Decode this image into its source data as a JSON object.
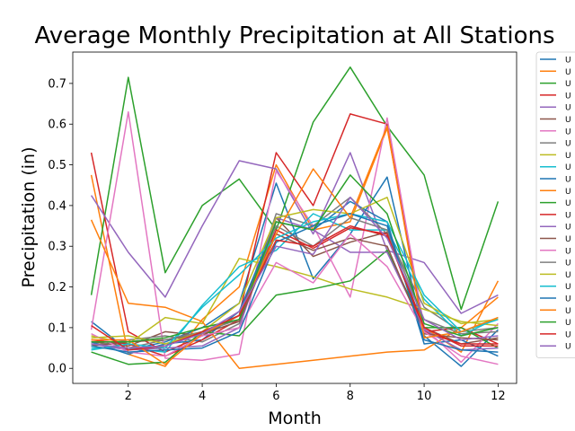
{
  "chart_data": {
    "type": "line",
    "title": "Average Monthly Precipitation at All Stations",
    "xlabel": "Month",
    "ylabel": "Precipitation (in)",
    "xlim": [
      0.5,
      12.5
    ],
    "ylim": [
      -0.037,
      0.777
    ],
    "xticks": [
      2,
      4,
      6,
      8,
      10,
      12
    ],
    "yticks": [
      0.0,
      0.1,
      0.2,
      0.3,
      0.4,
      0.5,
      0.6,
      0.7
    ],
    "grid": false,
    "legend_position": "outside-right",
    "x": [
      1,
      2,
      3,
      4,
      5,
      6,
      7,
      8,
      9,
      10,
      11,
      12
    ],
    "series": [
      {
        "name": "U",
        "color": "#1f77b4",
        "values": [
          0.115,
          0.045,
          0.065,
          0.1,
          0.16,
          0.455,
          0.22,
          0.33,
          0.47,
          0.08,
          0.005,
          0.095
        ]
      },
      {
        "name": "U",
        "color": "#ff7f0e",
        "values": [
          0.475,
          0.035,
          0.005,
          0.12,
          0.2,
          0.5,
          0.34,
          0.36,
          0.59,
          0.1,
          0.04,
          0.215
        ]
      },
      {
        "name": "U",
        "color": "#2ca02c",
        "values": [
          0.18,
          0.715,
          0.235,
          0.4,
          0.465,
          0.34,
          0.605,
          0.74,
          0.595,
          0.475,
          0.145,
          0.41
        ]
      },
      {
        "name": "U",
        "color": "#d62728",
        "values": [
          0.53,
          0.09,
          0.04,
          0.08,
          0.13,
          0.53,
          0.4,
          0.625,
          0.6,
          0.09,
          0.1,
          0.06
        ]
      },
      {
        "name": "U",
        "color": "#9467bd",
        "values": [
          0.425,
          0.285,
          0.175,
          0.35,
          0.51,
          0.49,
          0.33,
          0.53,
          0.29,
          0.26,
          0.135,
          0.18
        ]
      },
      {
        "name": "U",
        "color": "#8c564b",
        "values": [
          0.065,
          0.055,
          0.09,
          0.08,
          0.13,
          0.37,
          0.275,
          0.31,
          0.335,
          0.1,
          0.06,
          0.075
        ]
      },
      {
        "name": "U",
        "color": "#e377c2",
        "values": [
          0.095,
          0.63,
          0.025,
          0.02,
          0.035,
          0.485,
          0.35,
          0.175,
          0.615,
          0.1,
          0.015,
          0.11
        ]
      },
      {
        "name": "U",
        "color": "#7f7f7f",
        "values": [
          0.055,
          0.07,
          0.08,
          0.065,
          0.11,
          0.38,
          0.35,
          0.42,
          0.33,
          0.15,
          0.09,
          0.1
        ]
      },
      {
        "name": "U",
        "color": "#bcbd22",
        "values": [
          0.08,
          0.06,
          0.125,
          0.11,
          0.27,
          0.25,
          0.225,
          0.195,
          0.175,
          0.145,
          0.115,
          0.105
        ]
      },
      {
        "name": "U",
        "color": "#17becf",
        "values": [
          0.05,
          0.05,
          0.04,
          0.155,
          0.25,
          0.29,
          0.38,
          0.34,
          0.34,
          0.17,
          0.08,
          0.125
        ]
      },
      {
        "name": "U",
        "color": "#1f77b4",
        "values": [
          0.065,
          0.035,
          0.06,
          0.07,
          0.14,
          0.36,
          0.34,
          0.41,
          0.36,
          0.06,
          0.07,
          0.03
        ]
      },
      {
        "name": "U",
        "color": "#ff7f0e",
        "values": [
          0.365,
          0.16,
          0.15,
          0.115,
          0.0,
          0.01,
          0.02,
          0.03,
          0.04,
          0.045,
          0.1,
          0.175
        ]
      },
      {
        "name": "U",
        "color": "#2ca02c",
        "values": [
          0.04,
          0.01,
          0.015,
          0.09,
          0.08,
          0.18,
          0.195,
          0.215,
          0.29,
          0.1,
          0.1,
          0.05
        ]
      },
      {
        "name": "U",
        "color": "#d62728",
        "values": [
          0.07,
          0.06,
          0.03,
          0.07,
          0.12,
          0.34,
          0.295,
          0.345,
          0.33,
          0.09,
          0.06,
          0.06
        ]
      },
      {
        "name": "U",
        "color": "#9467bd",
        "values": [
          0.06,
          0.045,
          0.05,
          0.055,
          0.1,
          0.37,
          0.34,
          0.285,
          0.285,
          0.095,
          0.045,
          0.05
        ]
      },
      {
        "name": "U",
        "color": "#8c564b",
        "values": [
          0.055,
          0.065,
          0.07,
          0.085,
          0.115,
          0.33,
          0.29,
          0.32,
          0.3,
          0.085,
          0.075,
          0.07
        ]
      },
      {
        "name": "U",
        "color": "#e377c2",
        "values": [
          0.085,
          0.04,
          0.03,
          0.08,
          0.1,
          0.26,
          0.21,
          0.33,
          0.25,
          0.09,
          0.03,
          0.01
        ]
      },
      {
        "name": "U",
        "color": "#7f7f7f",
        "values": [
          0.06,
          0.05,
          0.07,
          0.09,
          0.12,
          0.35,
          0.3,
          0.37,
          0.34,
          0.12,
          0.085,
          0.09
        ]
      },
      {
        "name": "U",
        "color": "#bcbd22",
        "values": [
          0.075,
          0.08,
          0.06,
          0.09,
          0.16,
          0.37,
          0.39,
          0.38,
          0.42,
          0.16,
          0.11,
          0.12
        ]
      },
      {
        "name": "U",
        "color": "#17becf",
        "values": [
          0.045,
          0.06,
          0.05,
          0.15,
          0.23,
          0.32,
          0.36,
          0.38,
          0.36,
          0.18,
          0.09,
          0.12
        ]
      },
      {
        "name": "U",
        "color": "#1f77b4",
        "values": [
          0.055,
          0.04,
          0.045,
          0.05,
          0.09,
          0.31,
          0.35,
          0.38,
          0.35,
          0.07,
          0.045,
          0.04
        ]
      },
      {
        "name": "U",
        "color": "#ff7f0e",
        "values": [
          0.07,
          0.07,
          0.01,
          0.085,
          0.13,
          0.33,
          0.49,
          0.37,
          0.595,
          0.075,
          0.09,
          0.125
        ]
      },
      {
        "name": "U",
        "color": "#2ca02c",
        "values": [
          0.065,
          0.065,
          0.075,
          0.1,
          0.12,
          0.36,
          0.34,
          0.475,
          0.38,
          0.11,
          0.08,
          0.1
        ]
      },
      {
        "name": "U",
        "color": "#d62728",
        "values": [
          0.105,
          0.045,
          0.055,
          0.09,
          0.13,
          0.315,
          0.3,
          0.35,
          0.325,
          0.1,
          0.055,
          0.055
        ]
      },
      {
        "name": "U",
        "color": "#9467bd",
        "values": [
          0.06,
          0.05,
          0.055,
          0.085,
          0.14,
          0.3,
          0.28,
          0.42,
          0.32,
          0.12,
          0.07,
          0.08
        ]
      }
    ]
  }
}
